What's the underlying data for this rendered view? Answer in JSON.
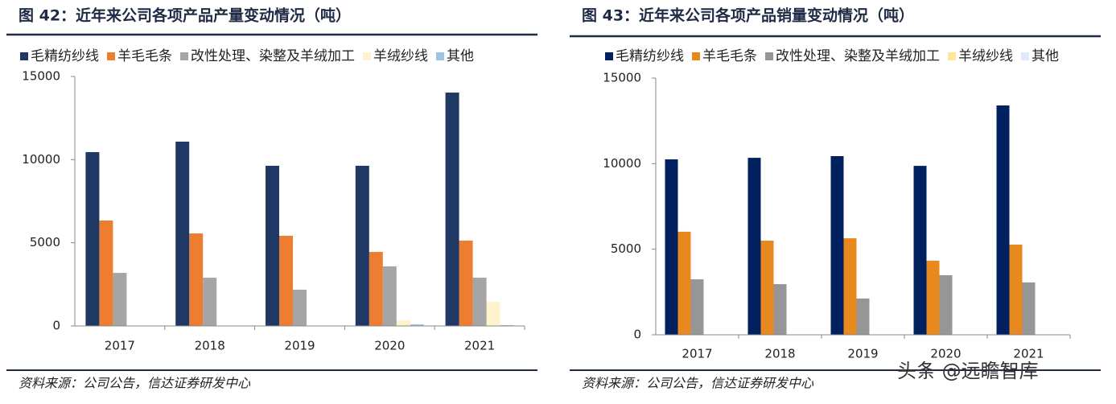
{
  "chart_data": [
    {
      "type": "bar",
      "title": "图 42：近年来公司各项产品产量变动情况（吨）",
      "source": "资料来源：公司公告，信达证券研发中心",
      "categories": [
        "2017",
        "2018",
        "2019",
        "2020",
        "2021"
      ],
      "series": [
        {
          "name": "毛精纺纱线",
          "color": "#203864",
          "values": [
            10450,
            11080,
            9630,
            9630,
            14030
          ]
        },
        {
          "name": "羊毛毛条",
          "color": "#ed7d31",
          "values": [
            6340,
            5560,
            5420,
            4450,
            5130
          ]
        },
        {
          "name": "改性处理、染整及羊绒加工",
          "color": "#a5a5a5",
          "values": [
            3190,
            2900,
            2180,
            3580,
            2900
          ]
        },
        {
          "name": "羊绒纱线",
          "color": "#fff2cc",
          "values": [
            0,
            0,
            0,
            340,
            1450
          ]
        },
        {
          "name": "其他",
          "color": "#9dc3e6",
          "values": [
            0,
            0,
            0,
            100,
            50
          ]
        }
      ],
      "ylim": [
        0,
        15000
      ],
      "yticks": [
        0,
        5000,
        10000,
        15000
      ]
    },
    {
      "type": "bar",
      "title": "图 43：近年来公司各项产品销量变动情况（吨）",
      "source": "资料来源：公司公告，信达证券研发中心",
      "categories": [
        "2017",
        "2018",
        "2019",
        "2020",
        "2021"
      ],
      "series": [
        {
          "name": "毛精纺纱线",
          "color": "#002060",
          "values": [
            10250,
            10340,
            10440,
            9870,
            13400
          ]
        },
        {
          "name": "羊毛毛条",
          "color": "#e8891f",
          "values": [
            6020,
            5500,
            5640,
            4330,
            5270
          ]
        },
        {
          "name": "改性处理、染整及羊绒加工",
          "color": "#969696",
          "values": [
            3240,
            2960,
            2120,
            3480,
            3060
          ]
        },
        {
          "name": "羊绒纱线",
          "color": "#ffe699",
          "values": [
            0,
            0,
            0,
            0,
            0
          ]
        },
        {
          "name": "其他",
          "color": "#deebf7",
          "values": [
            0,
            0,
            0,
            0,
            0
          ]
        }
      ],
      "ylim": [
        0,
        15000
      ],
      "yticks": [
        0,
        5000,
        10000,
        15000
      ]
    }
  ],
  "watermark": "头条 @远瞻智库"
}
